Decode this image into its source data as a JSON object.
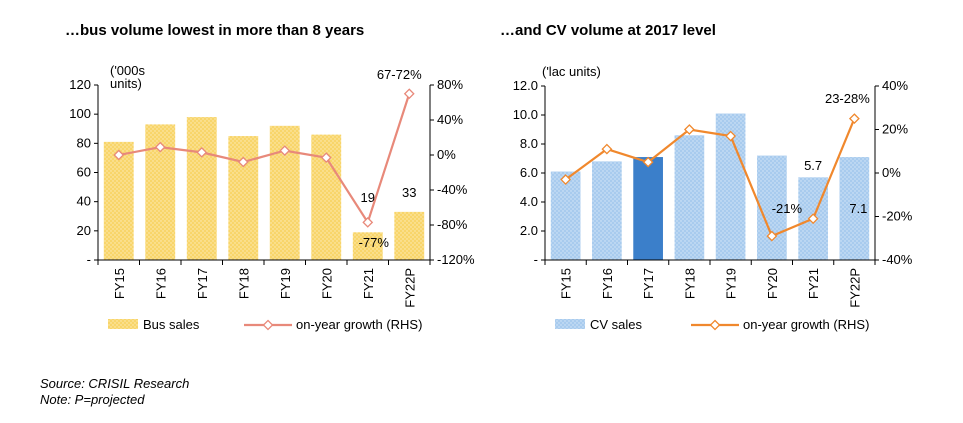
{
  "left": {
    "title": "…bus volume lowest in more than 8 years",
    "unit_label": [
      "('000s",
      "units)"
    ]
  },
  "right": {
    "title": "…and CV volume at 2017 level",
    "unit_label": [
      "('lac units)"
    ]
  },
  "chart_data": [
    {
      "type": "bar",
      "title": "…bus volume lowest in more than 8 years",
      "categories": [
        "FY15",
        "FY16",
        "FY17",
        "FY18",
        "FY19",
        "FY20",
        "FY21",
        "FY22P"
      ],
      "series": [
        {
          "name": "Bus sales",
          "axis": "left",
          "kind": "bar",
          "values": [
            81,
            93,
            98,
            85,
            92,
            86,
            19,
            33
          ],
          "color": "#f8d56a"
        },
        {
          "name": "on-year growth (RHS)",
          "axis": "right",
          "kind": "line",
          "values": [
            0,
            9,
            3,
            -8,
            5,
            -3,
            -77,
            70
          ],
          "color": "#e8897a"
        }
      ],
      "ylabel": "('000s units)",
      "ylim": [
        0,
        120
      ],
      "yticks": [
        "-",
        "20",
        "40",
        "60",
        "80",
        "100",
        "120"
      ],
      "y2lim": [
        -120,
        80
      ],
      "y2ticks": [
        "-120%",
        "-80%",
        "-40%",
        "0%",
        "40%",
        "80%"
      ],
      "annotations": [
        "19",
        "33",
        "-77%",
        "67-72%"
      ],
      "legend": "bottom"
    },
    {
      "type": "bar",
      "title": "…and CV volume at 2017 level",
      "categories": [
        "FY15",
        "FY16",
        "FY17",
        "FY18",
        "FY19",
        "FY20",
        "FY21",
        "FY22P"
      ],
      "series": [
        {
          "name": "CV sales",
          "axis": "left",
          "kind": "bar",
          "values": [
            6.1,
            6.8,
            7.1,
            8.6,
            10.1,
            7.2,
            5.7,
            7.1
          ],
          "color": "#a8cbee",
          "highlight_index": 2,
          "highlight_color": "#3b7fca"
        },
        {
          "name": "on-year growth (RHS)",
          "axis": "right",
          "kind": "line",
          "values": [
            -3,
            11,
            5,
            20,
            17,
            -29,
            -21,
            25
          ],
          "color": "#f0882d"
        }
      ],
      "ylabel": "('lac units)",
      "ylim": [
        0,
        12
      ],
      "yticks": [
        "-",
        "2.0",
        "4.0",
        "6.0",
        "8.0",
        "10.0",
        "12.0"
      ],
      "y2lim": [
        -40,
        40
      ],
      "y2ticks": [
        "-40%",
        "-20%",
        "0%",
        "20%",
        "40%"
      ],
      "annotations": [
        "5.7",
        "7.1",
        "-21%",
        "23-28%"
      ],
      "legend": "bottom"
    }
  ],
  "footer": {
    "source": "Source: CRISIL Research",
    "note": "Note: P=projected"
  }
}
